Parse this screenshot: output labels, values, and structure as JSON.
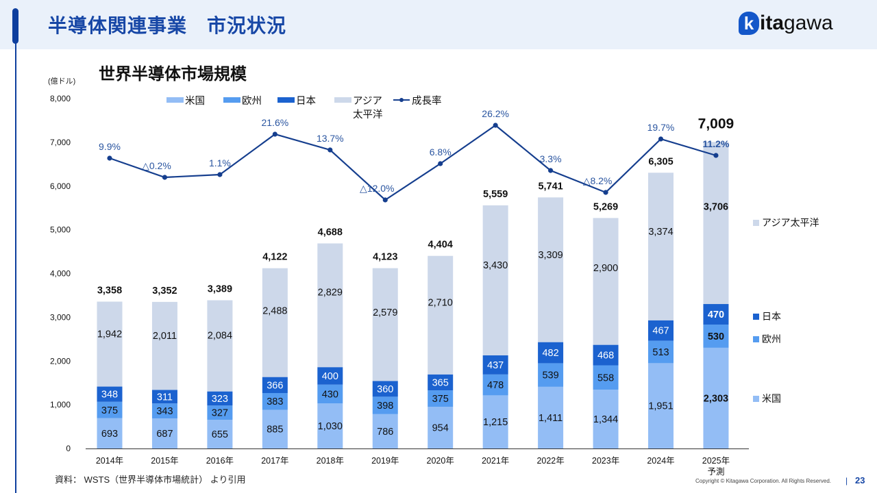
{
  "header": {
    "title": "半導体関連事業　市況状況",
    "logo": {
      "mark": "k",
      "bold": "ita",
      "light": "gawa"
    }
  },
  "footer": {
    "source": "資料：  WSTS（世界半導体市場統計） より引用",
    "copyright": "Copyright © Kitagawa Corporation. All Rights Reserved.",
    "separator": "|",
    "page_number": "23"
  },
  "colors": {
    "us": "#93bdf5",
    "europe": "#559cf0",
    "japan": "#1b62cf",
    "asia": "#cdd8ea",
    "growth": "#153e8e",
    "growth_label": "#2a55a0",
    "title": "#1747a6"
  },
  "chart_data": {
    "type": "bar",
    "stacked": true,
    "title": "世界半導体市場規模",
    "ylabel": "(億ドル)",
    "xlabel": "",
    "ylim": [
      0,
      8000
    ],
    "yticks": [
      0,
      1000,
      2000,
      3000,
      4000,
      5000,
      6000,
      7000,
      8000
    ],
    "ytick_labels": [
      "0",
      "1,000",
      "2,000",
      "3,000",
      "4,000",
      "5,000",
      "6,000",
      "7,000",
      "8,000"
    ],
    "grid": false,
    "categories": [
      "2014年",
      "2015年",
      "2016年",
      "2017年",
      "2018年",
      "2019年",
      "2020年",
      "2021年",
      "2022年",
      "2023年",
      "2024年",
      "2025年\n予測"
    ],
    "series": [
      {
        "key": "us",
        "name": "米国",
        "values": [
          693,
          687,
          655,
          885,
          1030,
          786,
          954,
          1215,
          1411,
          1344,
          1951,
          2303
        ]
      },
      {
        "key": "europe",
        "name": "欧州",
        "values": [
          375,
          343,
          327,
          383,
          430,
          398,
          375,
          478,
          539,
          558,
          513,
          530
        ]
      },
      {
        "key": "japan",
        "name": "日本",
        "values": [
          348,
          311,
          323,
          366,
          400,
          360,
          365,
          437,
          482,
          468,
          467,
          470
        ]
      },
      {
        "key": "asia",
        "name": "アジア太平洋",
        "values": [
          1942,
          2011,
          2084,
          2488,
          2829,
          2579,
          2710,
          3430,
          3309,
          2900,
          3374,
          3706
        ]
      }
    ],
    "totals": [
      3358,
      3352,
      3389,
      4122,
      4688,
      4123,
      4404,
      5559,
      5741,
      5269,
      6305,
      7009
    ],
    "growth_rate": {
      "name": "成長率",
      "values": [
        9.9,
        -0.2,
        1.1,
        21.6,
        13.7,
        -12.0,
        6.8,
        26.2,
        3.3,
        -8.2,
        19.7,
        11.2
      ],
      "labels": [
        "9.9%",
        "△0.2%",
        "1.1%",
        "21.6%",
        "13.7%",
        "△12.0%",
        "6.8%",
        "26.2%",
        "3.3%",
        "△8.2%",
        "19.7%",
        "11.2%"
      ],
      "secondary_axis_hidden": true
    },
    "legend_top": [
      "米国",
      "欧州",
      "日本",
      "アジア\n太平洋",
      "成長率"
    ],
    "legend_top_placement": "top-center",
    "legend_right": [
      "アジア太平洋",
      "日本",
      "欧州",
      "米国"
    ],
    "legend_right_placement": "right",
    "highlight_last_category": true
  }
}
